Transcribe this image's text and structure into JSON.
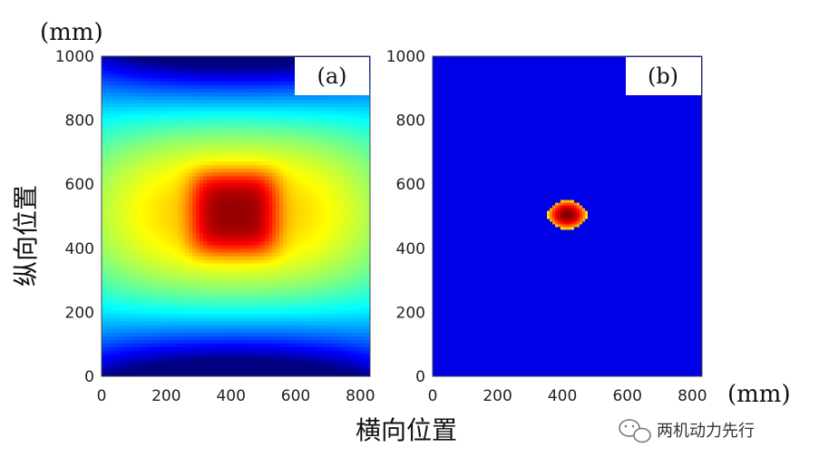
{
  "chart_data": [
    {
      "type": "heatmap",
      "panel_label": "(a)",
      "xlim": [
        0,
        830
      ],
      "ylim": [
        0,
        1000
      ],
      "xticks": [
        "0",
        "200",
        "400",
        "600",
        "800"
      ],
      "yticks": [
        "0",
        "200",
        "400",
        "600",
        "800",
        "1000"
      ],
      "field": {
        "description_free_params": true,
        "center": [
          410,
          510
        ],
        "peak": 1.0,
        "colormap": "jet"
      }
    },
    {
      "type": "heatmap",
      "panel_label": "(b)",
      "xlim": [
        0,
        830
      ],
      "ylim": [
        0,
        1000
      ],
      "xticks": [
        "0",
        "200",
        "400",
        "600",
        "800"
      ],
      "yticks": [
        "0",
        "200",
        "400",
        "600",
        "800",
        "1000"
      ],
      "field": {
        "center": [
          415,
          505
        ],
        "peak": 1.0,
        "colormap": "jet"
      }
    }
  ],
  "labels": {
    "y_unit": "(mm)",
    "x_unit": "(mm)",
    "y_axis": "纵向位置",
    "x_axis": "横向位置"
  },
  "watermark": {
    "text": "两机动力先行",
    "icon": "wechat-icon"
  }
}
